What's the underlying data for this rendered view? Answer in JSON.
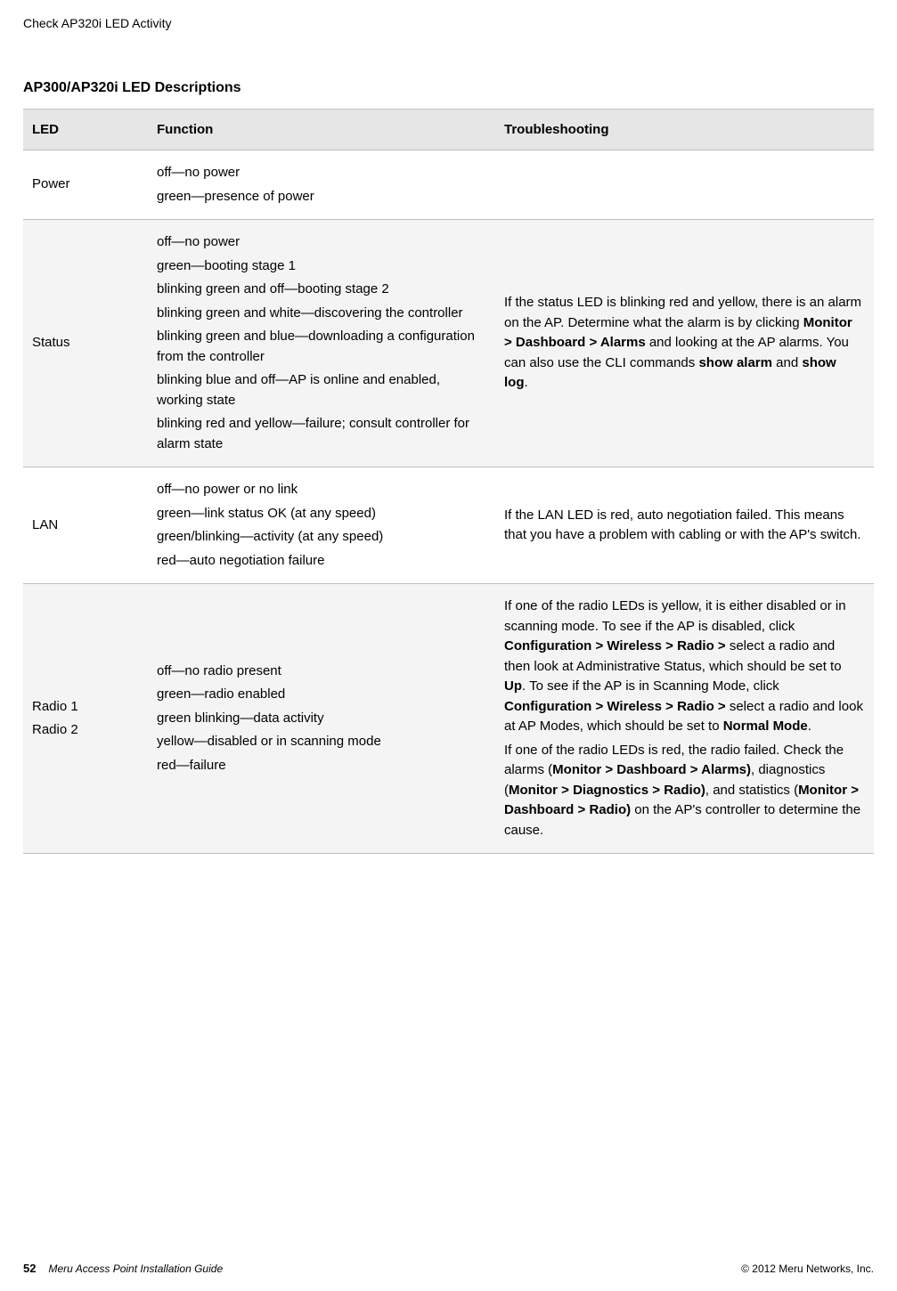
{
  "running_header": "Check AP320i LED Activity",
  "section_title": "AP300/AP320i LED Descriptions",
  "columns": {
    "led": "LED",
    "fn": "Function",
    "ts": "Troubleshooting"
  },
  "rows": {
    "power": {
      "led": "Power",
      "fn": [
        "off—no power",
        "green—presence of power"
      ],
      "ts": ""
    },
    "status": {
      "led": "Status",
      "fn": [
        "off—no power",
        "green—booting stage 1",
        "blinking green and off—booting stage 2",
        "blinking green and white—discovering the controller",
        "blinking green and blue—downloading a configuration from the controller",
        "blinking blue and off—AP is online and enabled, working state",
        "blinking red and yellow—failure; consult controller for alarm state"
      ],
      "ts_parts": [
        {
          "t": "If the status LED is blinking red and yellow, there is an alarm on the AP. Determine what the alarm is by clicking "
        },
        {
          "t": "Monitor > Dashboard > Alarms",
          "b": true
        },
        {
          "t": " and looking at the AP alarms. You can also use the CLI commands "
        },
        {
          "t": "show alarm",
          "b": true
        },
        {
          "t": " and "
        },
        {
          "t": "show log",
          "b": true
        },
        {
          "t": "."
        }
      ]
    },
    "lan": {
      "led": "LAN",
      "fn": [
        "off—no power or no link",
        "green—link status OK    (at any speed)",
        "green/blinking—activity (at any speed)",
        "red—auto negotiation failure"
      ],
      "ts_parts": [
        {
          "t": "If the LAN LED is  red, auto negotiation failed. This means that you have a problem with cabling or with the AP's switch."
        }
      ]
    },
    "radio": {
      "led_lines": [
        "Radio 1",
        "Radio 2"
      ],
      "fn": [
        "off—no radio present",
        "green—radio enabled",
        "green blinking—data activity",
        "yellow—disabled or in scanning mode",
        "red—failure"
      ],
      "ts_p1": [
        {
          "t": "If one of the radio LEDs is yellow, it is either disabled or in scanning mode. To see if the AP is disabled, click "
        },
        {
          "t": "Configuration > Wireless > Radio > ",
          "b": true
        },
        {
          "t": "select a radio and then look at Administrative Status, which should be set to "
        },
        {
          "t": "Up",
          "b": true
        },
        {
          "t": ". To see if the AP is in Scanning Mode, click "
        },
        {
          "t": "Configuration > Wireless > Radio > ",
          "b": true
        },
        {
          "t": "select a radio and look at AP Modes, which should be set to "
        },
        {
          "t": "Normal Mode",
          "b": true
        },
        {
          "t": "."
        }
      ],
      "ts_p2": [
        {
          "t": "If one of the radio LEDs is red, the radio failed. Check the alarms ("
        },
        {
          "t": "Monitor > Dashboard > Alarms)",
          "b": true
        },
        {
          "t": ", diagnostics ("
        },
        {
          "t": "Monitor > Diagnostics > Radio)",
          "b": true
        },
        {
          "t": ", and statistics  ("
        },
        {
          "t": "Monitor > Dashboard > Radio)",
          "b": true
        },
        {
          "t": " on the AP's controller to determine the cause."
        }
      ]
    }
  },
  "footer": {
    "page_no": "52",
    "doc_title": "Meru Access Point Installation Guide",
    "copyright": "© 2012 Meru Networks, Inc."
  }
}
